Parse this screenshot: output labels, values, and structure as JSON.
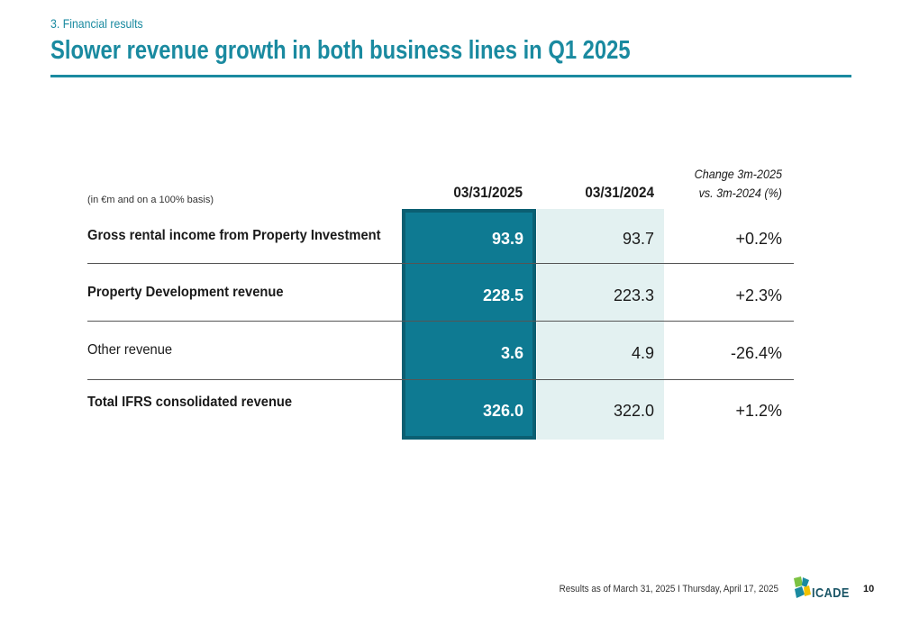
{
  "header": {
    "section": "3. Financial results",
    "title": "Slower revenue growth in both business lines in Q1 2025"
  },
  "table": {
    "unit_note": "(in €m and on a 100% basis)",
    "columns": {
      "current": "03/31/2025",
      "previous": "03/31/2024",
      "change_line1": "Change 3m-2025",
      "change_line2": "vs. 3m-2024 (%)"
    },
    "rows": [
      {
        "label": "Gross rental income from Property Investment",
        "current": "93.9",
        "previous": "93.7",
        "change": "+0.2%",
        "bold": true
      },
      {
        "label": "Property Development revenue",
        "current": "228.5",
        "previous": "223.3",
        "change": "+2.3%",
        "bold": true
      },
      {
        "label": "Other revenue",
        "current": "3.6",
        "previous": "4.9",
        "change": "-26.4%",
        "bold": false
      },
      {
        "label": "Total IFRS consolidated revenue",
        "current": "326.0",
        "previous": "322.0",
        "change": "+1.2%",
        "bold": true
      }
    ]
  },
  "footer": {
    "text": "Results as of March 31, 2025   I   Thursday, April 17, 2025",
    "logo_text": "ICADE",
    "page_number": "10"
  },
  "colors": {
    "accent": "#1a8aa0",
    "highlight_column": "#0e7a92",
    "light_column": "#e3f1f1"
  }
}
